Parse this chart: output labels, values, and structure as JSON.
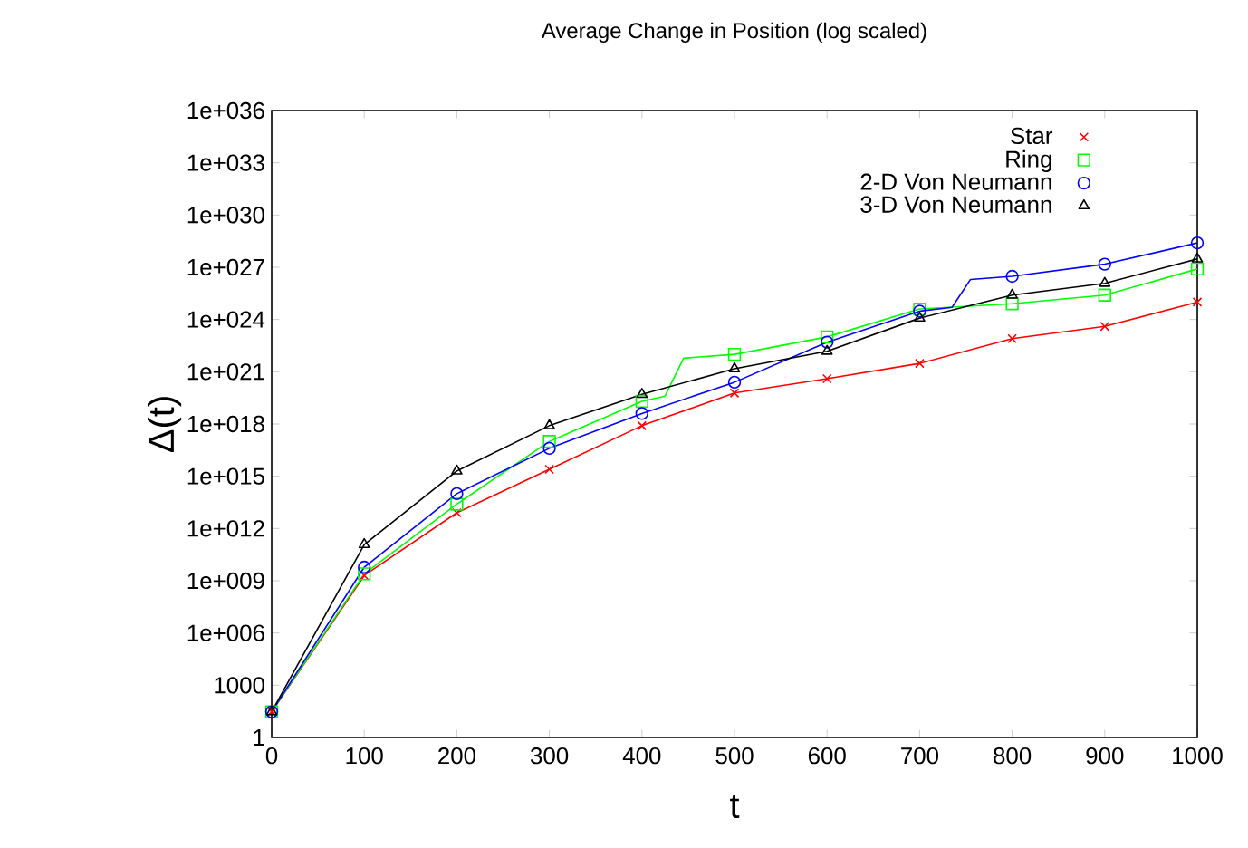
{
  "chart_data": {
    "type": "line",
    "title": "Average Change in Position (log scaled)",
    "xlabel": "t",
    "ylabel": "Δ(t)",
    "log": "y",
    "legend": "top right",
    "grid": false,
    "xlim": [
      0,
      1000
    ],
    "xticks": [
      0,
      100,
      200,
      300,
      400,
      500,
      600,
      700,
      800,
      900,
      1000
    ],
    "ylim": [
      1,
      1e+36
    ],
    "yticks": [
      1,
      1000,
      {
        "value": 1000000.0,
        "label": "1e+006"
      },
      {
        "value": 1000000000.0,
        "label": "1e+009"
      },
      {
        "value": 1000000000000.0,
        "label": "1e+012"
      },
      {
        "value": 1000000000000000.0,
        "label": "1e+015"
      },
      {
        "value": 1e+18,
        "label": "1e+018"
      },
      {
        "value": 1e+21,
        "label": "1e+021"
      },
      {
        "value": 1e+24,
        "label": "1e+024"
      },
      {
        "value": 1e+27,
        "label": "1e+027"
      },
      {
        "value": 1e+30,
        "label": "1e+030"
      },
      {
        "value": 1e+33,
        "label": "1e+033"
      },
      {
        "value": 1e+36,
        "label": "1e+036"
      }
    ],
    "series": [
      {
        "name": "Star",
        "color": "#ff0000",
        "marker": "cross",
        "x": [
          0,
          100,
          200,
          300,
          400,
          500,
          600,
          700,
          800,
          900,
          1000
        ],
        "values": [
          30,
          2000000000.0,
          8000000000000.0,
          2500000000000000.0,
          8e+17,
          6e+19,
          4e+20,
          3e+21,
          8e+22,
          4e+23,
          1e+25
        ]
      },
      {
        "name": "Ring",
        "color": "#00ff00",
        "marker": "square",
        "x": [
          0,
          100,
          200,
          300,
          400,
          425,
          445,
          500,
          600,
          700,
          800,
          900,
          1000
        ],
        "values": [
          30,
          2500000000.0,
          25000000000000.0,
          1e+17,
          2e+19,
          4e+19,
          6e+21,
          1e+22,
          1e+23,
          4e+24,
          8e+24,
          2.5e+25,
          8e+26
        ]
      },
      {
        "name": "2-D Von Neumann",
        "color": "#0000ff",
        "marker": "circle",
        "x": [
          0,
          100,
          200,
          300,
          400,
          500,
          600,
          700,
          735,
          755,
          800,
          900,
          1000
        ],
        "values": [
          30,
          6000000000.0,
          100000000000000.0,
          4e+16,
          4e+18,
          2.5e+20,
          5e+22,
          3e+24,
          5e+24,
          2e+26,
          3e+26,
          1.5e+27,
          2.5e+28
        ]
      },
      {
        "name": "3-D Von Neumann",
        "color": "#000000",
        "marker": "triangle",
        "x": [
          0,
          100,
          200,
          300,
          400,
          500,
          600,
          700,
          800,
          900,
          1000
        ],
        "values": [
          30,
          120000000000.0,
          2000000000000000.0,
          8e+17,
          5e+19,
          1.5e+21,
          1.5e+22,
          1.2e+24,
          2.5e+25,
          1.2e+26,
          3e+27
        ]
      }
    ]
  }
}
